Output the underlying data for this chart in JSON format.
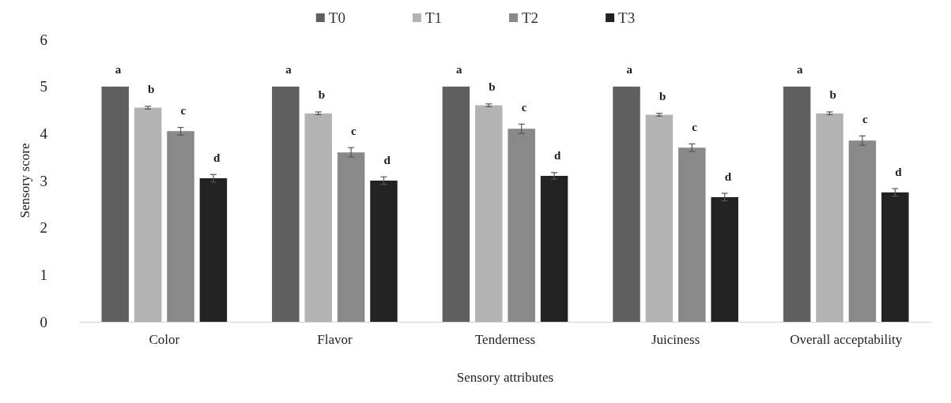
{
  "chart_data": {
    "type": "bar",
    "xlabel": "Sensory attributes",
    "ylabel": "Sensory score",
    "categories": [
      "Color",
      "Flavor",
      "Tenderness",
      "Juiciness",
      "Overall acceptability"
    ],
    "series": [
      {
        "name": "T0",
        "color": "#5f5f5f",
        "values": [
          5,
          5,
          5,
          5,
          5
        ],
        "value_labels": [
          "a",
          "a",
          "a",
          "a",
          "a"
        ]
      },
      {
        "name": "T1",
        "color": "#b3b3b3",
        "values": [
          4.55,
          4.43,
          4.6,
          4.4,
          4.43
        ],
        "errors": [
          0.03,
          0.03,
          0.03,
          0.03,
          0.03
        ],
        "value_labels": [
          "b",
          "b",
          "b",
          "b",
          "b"
        ]
      },
      {
        "name": "T2",
        "color": "#898989",
        "values": [
          4.05,
          3.6,
          4.1,
          3.7,
          3.85
        ],
        "errors": [
          0.08,
          0.1,
          0.1,
          0.08,
          0.1
        ],
        "value_labels": [
          "c",
          "c",
          "c",
          "c",
          "c"
        ]
      },
      {
        "name": "T3",
        "color": "#222222",
        "values": [
          3.05,
          3.0,
          3.1,
          2.65,
          2.75
        ],
        "errors": [
          0.08,
          0.08,
          0.07,
          0.08,
          0.08
        ],
        "value_labels": [
          "d",
          "d",
          "d",
          "d",
          "d"
        ]
      }
    ],
    "ylim": [
      0,
      6
    ],
    "yticks": [
      0,
      1,
      2,
      3,
      4,
      5,
      6
    ],
    "grid": false,
    "legend": "top"
  }
}
